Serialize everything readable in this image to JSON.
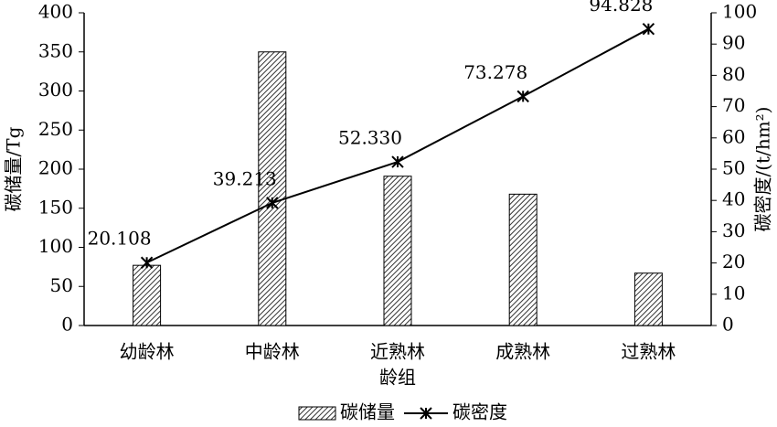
{
  "chart_data": {
    "type": "bar",
    "categories": [
      "幼龄林",
      "中龄林",
      "近熟林",
      "成熟林",
      "过熟林"
    ],
    "x_label": "龄组",
    "y_label": "碳储量/Tg",
    "y2_label": "碳密度/(t/hm²)",
    "series": [
      {
        "name": "碳储量",
        "type": "bar",
        "color": "#000000",
        "values": [
          77,
          350,
          191,
          168,
          67
        ]
      },
      {
        "name": "碳密度",
        "type": "line",
        "axis": "y2",
        "color": "#000000",
        "values": [
          20.108,
          39.213,
          52.33,
          73.278,
          94.828
        ],
        "value_labels": [
          "20.108",
          "39.213",
          "52.330",
          "73.278",
          "94.828"
        ]
      }
    ],
    "ylim": [
      0,
      400
    ],
    "yticks": [
      0,
      50,
      100,
      150,
      200,
      250,
      300,
      350,
      400
    ],
    "y2lim": [
      0,
      100
    ],
    "y2ticks": [
      0,
      10,
      20,
      30,
      40,
      50,
      60,
      70,
      80,
      90,
      100
    ],
    "legend": "bottom"
  }
}
